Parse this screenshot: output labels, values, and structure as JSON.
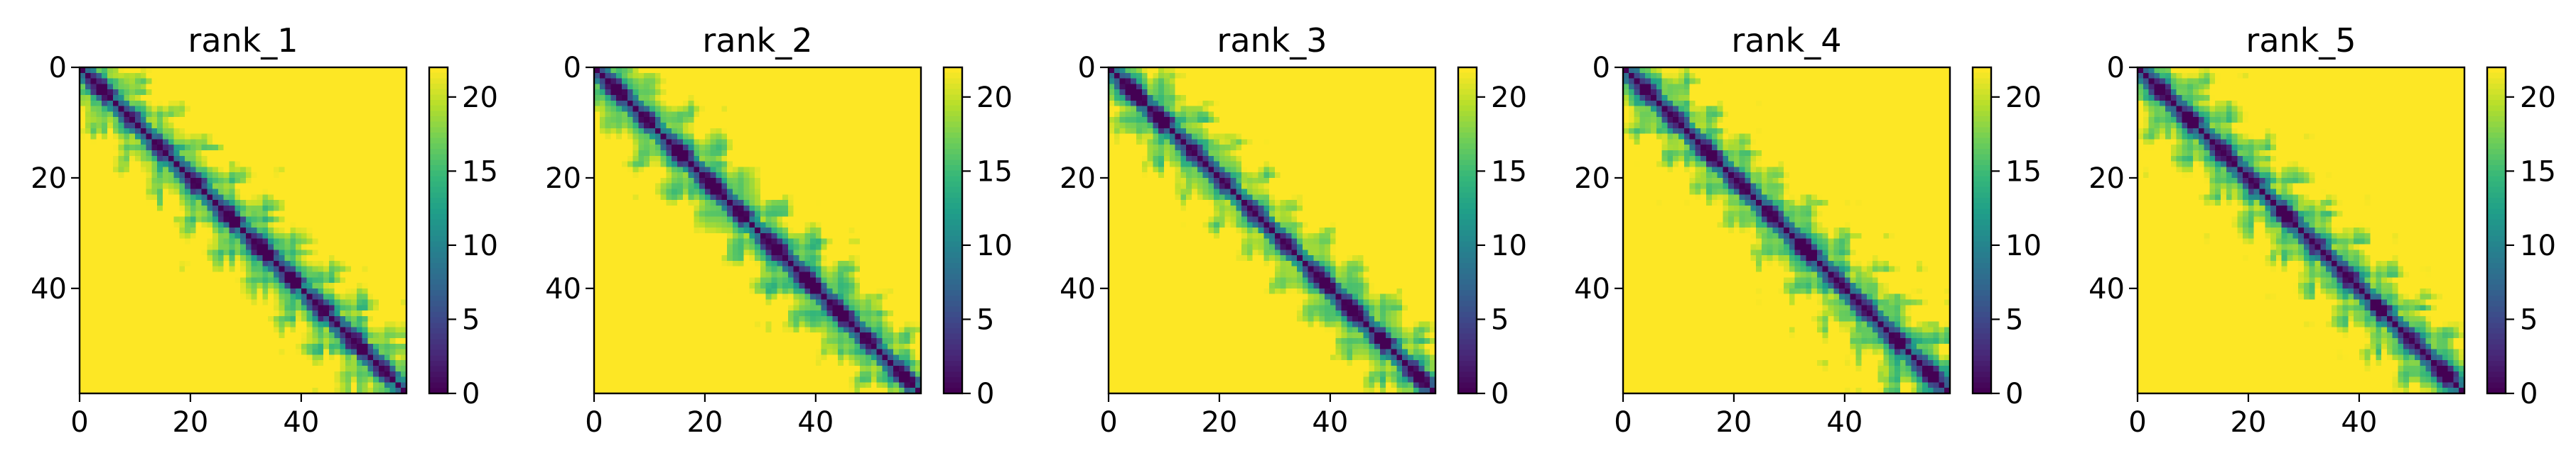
{
  "chart_data": [
    {
      "type": "heatmap",
      "title": "rank_1",
      "x_ticks": [
        0,
        20,
        40
      ],
      "y_ticks": [
        0,
        20,
        40
      ],
      "colorbar_ticks": [
        0,
        5,
        10,
        15,
        20
      ],
      "matrix_size": 59,
      "value_range": [
        0,
        22
      ],
      "colormap": "viridis"
    },
    {
      "type": "heatmap",
      "title": "rank_2",
      "x_ticks": [
        0,
        20,
        40
      ],
      "y_ticks": [
        0,
        20,
        40
      ],
      "colorbar_ticks": [
        0,
        5,
        10,
        15,
        20
      ],
      "matrix_size": 59,
      "value_range": [
        0,
        22
      ],
      "colormap": "viridis"
    },
    {
      "type": "heatmap",
      "title": "rank_3",
      "x_ticks": [
        0,
        20,
        40
      ],
      "y_ticks": [
        0,
        20,
        40
      ],
      "colorbar_ticks": [
        0,
        5,
        10,
        15,
        20
      ],
      "matrix_size": 59,
      "value_range": [
        0,
        22
      ],
      "colormap": "viridis"
    },
    {
      "type": "heatmap",
      "title": "rank_4",
      "x_ticks": [
        0,
        20,
        40
      ],
      "y_ticks": [
        0,
        20,
        40
      ],
      "colorbar_ticks": [
        0,
        5,
        10,
        15,
        20
      ],
      "matrix_size": 59,
      "value_range": [
        0,
        22
      ],
      "colormap": "viridis"
    },
    {
      "type": "heatmap",
      "title": "rank_5",
      "x_ticks": [
        0,
        20,
        40
      ],
      "y_ticks": [
        0,
        20,
        40
      ],
      "colorbar_ticks": [
        0,
        5,
        10,
        15,
        20
      ],
      "matrix_size": 59,
      "value_range": [
        0,
        22
      ],
      "colormap": "viridis"
    }
  ]
}
